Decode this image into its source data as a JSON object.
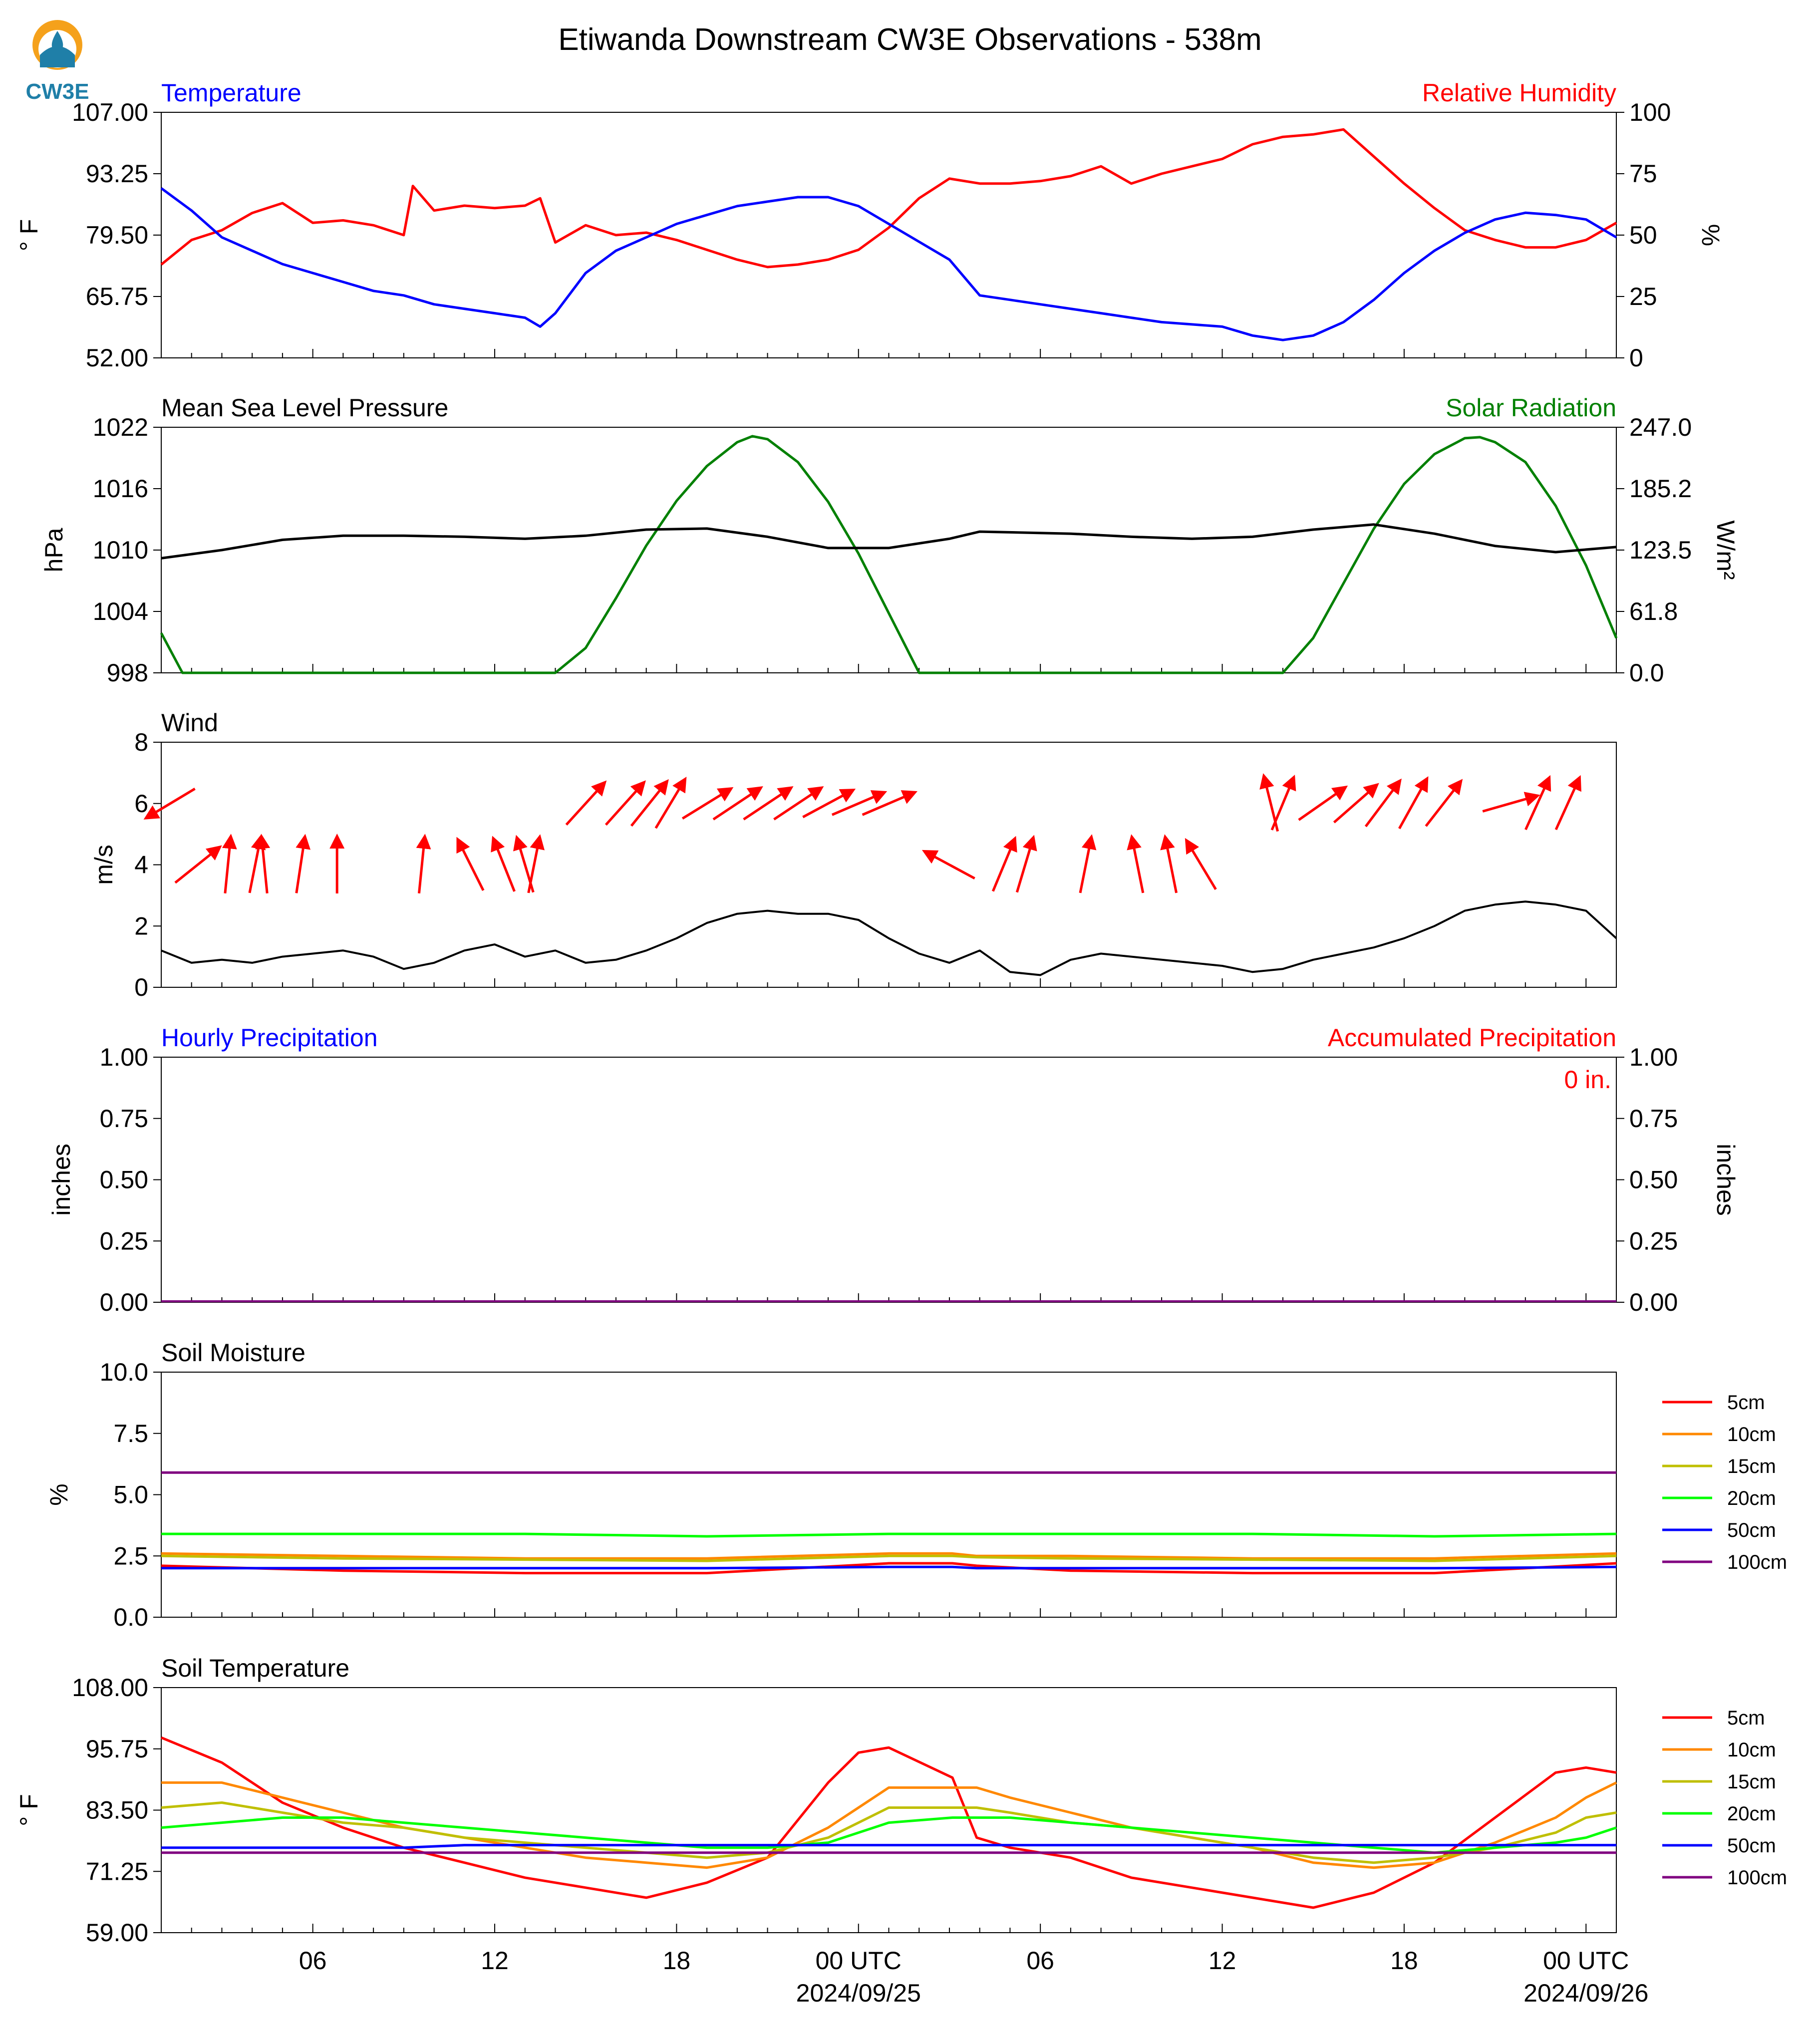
{
  "title": "Etiwanda Downstream CW3E Observations - 538m",
  "logo": {
    "text": "CW3E",
    "colors": {
      "sun": "#f5a11b",
      "water": "#1f7fa8",
      "text": "#1f7fa8"
    }
  },
  "colors": {
    "blue": "#0000ff",
    "red": "#ff0000",
    "green": "#008000",
    "black": "#000000",
    "orange": "#ff8800",
    "olive": "#bfbf00",
    "lime": "#00ff00",
    "purple": "#800080"
  },
  "x_axis": {
    "tick_labels": [
      "06",
      "12",
      "18",
      "00 UTC",
      "06",
      "12",
      "18",
      "00 UTC"
    ],
    "date_labels": [
      "2024/09/25",
      "2024/09/26"
    ],
    "range_hours": [
      0,
      48
    ],
    "label_hours": [
      5,
      11,
      17,
      23,
      29,
      35,
      41,
      47
    ],
    "gap_hours": [
      26.1,
      26.9
    ]
  },
  "panels": {
    "temp_rh": {
      "left_title": "Temperature",
      "right_title": "Relative Humidity",
      "left_label": "° F",
      "right_label": "%",
      "left_ticks": [
        "107.00",
        "93.25",
        "79.50",
        "65.75",
        "52.00"
      ],
      "right_ticks": [
        "100",
        "75",
        "50",
        "25",
        "0"
      ]
    },
    "pressure_solar": {
      "left_title": "Mean Sea Level Pressure",
      "right_title": "Solar Radiation",
      "left_label": "hPa",
      "right_label": "W/m²",
      "left_ticks": [
        "1022",
        "1016",
        "1010",
        "1004",
        "998"
      ],
      "right_ticks": [
        "247.0",
        "185.2",
        "123.5",
        "61.8",
        "0.0"
      ]
    },
    "wind": {
      "left_title": "Wind",
      "left_label": "m/s",
      "left_ticks": [
        "8",
        "6",
        "4",
        "2",
        "0"
      ]
    },
    "precip": {
      "left_title": "Hourly Precipitation",
      "right_title": "Accumulated Precipitation",
      "left_label": "inches",
      "right_label": "inches",
      "accum_text": "0 in.",
      "left_ticks": [
        "1.00",
        "0.75",
        "0.50",
        "0.25",
        "0.00"
      ],
      "right_ticks": [
        "1.00",
        "0.75",
        "0.50",
        "0.25",
        "0.00"
      ]
    },
    "soil_moisture": {
      "left_title": "Soil Moisture",
      "left_label": "%",
      "left_ticks": [
        "10.0",
        "7.5",
        "5.0",
        "2.5",
        "0.0"
      ],
      "legend": [
        "5cm",
        "10cm",
        "15cm",
        "20cm",
        "50cm",
        "100cm"
      ]
    },
    "soil_temp": {
      "left_title": "Soil Temperature",
      "left_label": "° F",
      "left_ticks": [
        "108.00",
        "95.75",
        "83.50",
        "71.25",
        "59.00"
      ],
      "legend": [
        "5cm",
        "10cm",
        "15cm",
        "20cm",
        "50cm",
        "100cm"
      ]
    }
  },
  "chart_data": [
    {
      "type": "line",
      "title": "Temperature / Relative Humidity",
      "ylim": [
        52,
        107
      ],
      "y2lim": [
        0,
        100
      ],
      "series": [
        {
          "name": "Temperature",
          "axis": "left",
          "x": [
            0,
            1,
            2,
            3,
            4,
            5,
            6,
            7,
            8,
            9,
            10,
            11,
            12,
            12.5,
            13,
            14,
            15,
            16,
            17,
            18,
            19,
            20,
            21,
            22,
            23,
            24,
            25,
            26,
            27,
            28,
            29,
            30,
            31,
            32,
            33,
            34,
            35,
            36,
            37,
            38,
            39,
            40,
            41,
            42,
            43,
            44,
            45,
            46,
            47,
            48
          ],
          "y": [
            90,
            85,
            79,
            76,
            73,
            71,
            69,
            67,
            66,
            64,
            63,
            62,
            61,
            59,
            62,
            71,
            76,
            79,
            82,
            84,
            86,
            87,
            88,
            88,
            86,
            82,
            78,
            74,
            66,
            65,
            64,
            63,
            62,
            61,
            60,
            59.5,
            59,
            57,
            56,
            57,
            60,
            65,
            71,
            76,
            80,
            83,
            84.5,
            84,
            83,
            79
          ]
        },
        {
          "name": "Relative Humidity",
          "axis": "right",
          "x": [
            0,
            1,
            2,
            3,
            4,
            5,
            6,
            7,
            8,
            8.3,
            9,
            10,
            11,
            12,
            12.5,
            13,
            14,
            15,
            16,
            17,
            18,
            19,
            20,
            21,
            22,
            23,
            24,
            25,
            26,
            27,
            28,
            29,
            30,
            31,
            32,
            33,
            34,
            35,
            36,
            37,
            38,
            39,
            40,
            41,
            42,
            43,
            44,
            45,
            46,
            47,
            48
          ],
          "y": [
            38,
            48,
            52,
            59,
            63,
            55,
            56,
            54,
            50,
            70,
            60,
            62,
            61,
            62,
            65,
            47,
            54,
            50,
            51,
            48,
            44,
            40,
            37,
            38,
            40,
            44,
            53,
            65,
            73,
            71,
            71,
            72,
            74,
            78,
            71,
            75,
            78,
            81,
            87,
            90,
            91,
            93,
            82,
            71,
            61,
            52,
            48,
            45,
            45,
            48,
            55
          ]
        }
      ]
    },
    {
      "type": "line",
      "title": "Mean Sea Level Pressure / Solar Radiation",
      "ylim": [
        998,
        1022
      ],
      "y2lim": [
        0,
        247
      ],
      "series": [
        {
          "name": "Mean Sea Level Pressure",
          "axis": "left",
          "x": [
            0,
            2,
            4,
            6,
            8,
            10,
            12,
            14,
            16,
            18,
            20,
            22,
            24,
            26,
            27,
            30,
            32,
            34,
            36,
            38,
            40,
            42,
            44,
            46,
            48
          ],
          "y": [
            1009.2,
            1010.0,
            1011.0,
            1011.4,
            1011.4,
            1011.3,
            1011.1,
            1011.4,
            1012.0,
            1012.1,
            1011.3,
            1010.2,
            1010.2,
            1011.1,
            1011.8,
            1011.6,
            1011.3,
            1011.1,
            1011.3,
            1012.0,
            1012.5,
            1011.6,
            1010.4,
            1009.8,
            1010.3
          ]
        },
        {
          "name": "Solar Radiation",
          "axis": "right",
          "x": [
            0,
            0.7,
            13,
            14,
            15,
            16,
            17,
            18,
            19,
            19.5,
            20,
            21,
            22,
            23,
            24,
            25,
            26.1,
            26.9,
            37,
            38,
            39,
            40,
            41,
            42,
            43,
            43.5,
            44,
            45,
            46,
            47,
            48
          ],
          "y": [
            40,
            0,
            0,
            25,
            75,
            128,
            173,
            208,
            232,
            238,
            235,
            212,
            172,
            120,
            60,
            0,
            0,
            0,
            0,
            35,
            90,
            145,
            190,
            220,
            236,
            237,
            232,
            212,
            168,
            108,
            35
          ]
        }
      ]
    },
    {
      "type": "line",
      "title": "Wind",
      "ylim": [
        0,
        8
      ],
      "series": [
        {
          "name": "Wind speed",
          "x": [
            0,
            1,
            2,
            3,
            4,
            5,
            6,
            7,
            8,
            9,
            10,
            11,
            12,
            13,
            14,
            15,
            16,
            17,
            18,
            19,
            20,
            21,
            22,
            23,
            24,
            25,
            26,
            27,
            28,
            29,
            30,
            31,
            32,
            33,
            34,
            35,
            36,
            37,
            38,
            39,
            40,
            41,
            42,
            43,
            44,
            45,
            46,
            47,
            48
          ],
          "y": [
            1.2,
            0.8,
            0.9,
            0.8,
            1.0,
            1.1,
            1.2,
            1.0,
            0.6,
            0.8,
            1.2,
            1.4,
            1.0,
            1.2,
            0.8,
            0.9,
            1.2,
            1.6,
            2.1,
            2.4,
            2.5,
            2.4,
            2.4,
            2.2,
            1.6,
            1.1,
            0.8,
            1.2,
            0.5,
            0.4,
            0.9,
            1.1,
            1.0,
            0.9,
            0.8,
            0.7,
            0.5,
            0.6,
            0.9,
            1.1,
            1.3,
            1.6,
            2.0,
            2.5,
            2.7,
            2.8,
            2.7,
            2.5,
            1.6
          ]
        },
        {
          "name": "Wind direction arrows",
          "x": [
            0.3,
            1.2,
            2.2,
            3.1,
            3.4,
            4.6,
            5.8,
            8.6,
            10.2,
            11.3,
            12.0,
            12.3,
            14.0,
            15.3,
            16.1,
            16.8,
            18.0,
            19.0,
            20.0,
            21.0,
            22.0,
            23.0,
            24.0,
            26.0,
            27.8,
            28.5,
            30.5,
            32.2,
            33.3,
            34.3,
            36.6,
            37.0,
            38.3,
            39.4,
            40.3,
            41.3,
            42.3,
            44.5,
            45.4,
            46.4
          ],
          "y": [
            6.0,
            4.0,
            4.0,
            4.0,
            4.0,
            4.0,
            4.0,
            4.0,
            4.0,
            4.0,
            4.0,
            4.0,
            6.0,
            6.0,
            6.0,
            6.0,
            6.0,
            6.0,
            6.0,
            6.0,
            6.0,
            6.0,
            6.0,
            4.0,
            4.0,
            4.0,
            4.0,
            4.0,
            4.0,
            4.0,
            6.0,
            6.0,
            6.0,
            6.0,
            6.0,
            6.0,
            6.0,
            6.0,
            6.0,
            6.0
          ]
        }
      ]
    },
    {
      "type": "line",
      "title": "Hourly Precipitation / Accumulated Precipitation",
      "ylim": [
        0,
        1
      ],
      "y2lim": [
        0,
        1
      ],
      "series": [
        {
          "name": "Hourly Precipitation",
          "x": [
            0,
            48
          ],
          "y": [
            0,
            0
          ]
        },
        {
          "name": "Accumulated Precipitation",
          "x": [
            0,
            48
          ],
          "y": [
            0,
            0
          ]
        }
      ]
    },
    {
      "type": "line",
      "title": "Soil Moisture",
      "ylim": [
        0,
        10
      ],
      "x": [
        0,
        6,
        12,
        18,
        24,
        26.1,
        26.9,
        30,
        36,
        42,
        48
      ],
      "series": [
        {
          "name": "5cm",
          "y": [
            2.1,
            1.9,
            1.8,
            1.8,
            2.2,
            2.2,
            2.1,
            1.9,
            1.8,
            1.8,
            2.2
          ]
        },
        {
          "name": "10cm",
          "y": [
            2.6,
            2.5,
            2.4,
            2.4,
            2.6,
            2.6,
            2.5,
            2.5,
            2.4,
            2.4,
            2.6
          ]
        },
        {
          "name": "15cm",
          "y": [
            2.5,
            2.4,
            2.35,
            2.3,
            2.5,
            2.5,
            2.45,
            2.4,
            2.35,
            2.3,
            2.5
          ]
        },
        {
          "name": "20cm",
          "y": [
            3.4,
            3.4,
            3.4,
            3.3,
            3.4,
            3.4,
            3.4,
            3.4,
            3.4,
            3.3,
            3.4
          ]
        },
        {
          "name": "50cm",
          "y": [
            2.0,
            2.0,
            2.0,
            2.0,
            2.05,
            2.05,
            2.0,
            2.0,
            2.0,
            2.0,
            2.05
          ]
        },
        {
          "name": "100cm",
          "y": [
            5.9,
            5.9,
            5.9,
            5.9,
            5.9,
            5.9,
            5.9,
            5.9,
            5.9,
            5.9,
            5.9
          ]
        }
      ]
    },
    {
      "type": "line",
      "title": "Soil Temperature",
      "ylim": [
        59,
        108
      ],
      "x": [
        0,
        2,
        4,
        6,
        8,
        10,
        12,
        14,
        16,
        18,
        20,
        22,
        23,
        24,
        26.1,
        26.9,
        28,
        30,
        32,
        34,
        36,
        38,
        40,
        42,
        44,
        46,
        47,
        48
      ],
      "series": [
        {
          "name": "5cm",
          "y": [
            98,
            93,
            85,
            80,
            76,
            73,
            70,
            68,
            66,
            69,
            74,
            89,
            95,
            96,
            90,
            78,
            76,
            74,
            70,
            68,
            66,
            64,
            67,
            73,
            82,
            91,
            92,
            91
          ]
        },
        {
          "name": "10cm",
          "y": [
            89,
            89,
            86,
            83,
            80,
            78,
            76,
            74,
            73,
            72,
            74,
            80,
            84,
            88,
            88,
            88,
            86,
            83,
            80,
            78,
            76,
            73,
            72,
            73,
            77,
            82,
            86,
            89
          ]
        },
        {
          "name": "15cm",
          "y": [
            84,
            85,
            83,
            81,
            80,
            78,
            77,
            76,
            75,
            74,
            75,
            78,
            81,
            84,
            84,
            84,
            83,
            81,
            80,
            78,
            76,
            74,
            73,
            74,
            76,
            79,
            82,
            83
          ]
        },
        {
          "name": "20cm",
          "y": [
            80,
            81,
            82,
            82,
            81,
            80,
            79,
            78,
            77,
            76,
            76,
            77,
            79,
            81,
            82,
            82,
            82,
            81,
            80,
            79,
            78,
            77,
            76,
            75,
            76,
            77,
            78,
            80
          ]
        },
        {
          "name": "50cm",
          "y": [
            76,
            76,
            76,
            76,
            76,
            76.5,
            76.5,
            76.5,
            76.5,
            76.5,
            76.5,
            76.5,
            76.5,
            76.5,
            76.5,
            76.5,
            76.5,
            76.5,
            76.5,
            76.5,
            76.5,
            76.5,
            76.5,
            76.5,
            76.5,
            76.5,
            76.5,
            76.5
          ]
        },
        {
          "name": "100cm",
          "y": [
            75,
            75,
            75,
            75,
            75,
            75,
            75,
            75,
            75,
            75,
            75,
            75,
            75,
            75,
            75,
            75,
            75,
            75,
            75,
            75,
            75,
            75,
            75,
            75,
            75,
            75,
            75,
            75
          ]
        }
      ]
    }
  ]
}
